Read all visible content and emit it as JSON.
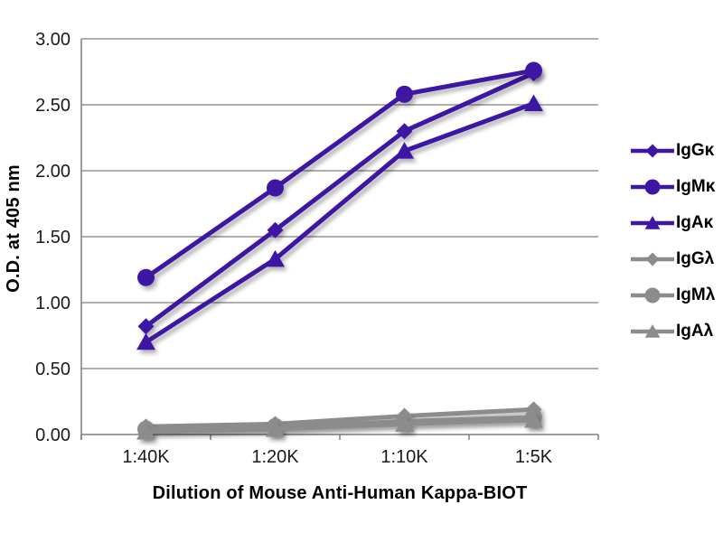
{
  "page": {
    "background": "#ffffff"
  },
  "chart_data": {
    "type": "line",
    "title": "",
    "xlabel": "Dilution of Mouse Anti-Human Kappa-BIOT",
    "ylabel": "O.D. at 405 nm",
    "categories": [
      "1:40K",
      "1:20K",
      "1:10K",
      "1:5K"
    ],
    "ylim": [
      0,
      3
    ],
    "ytick_values": [
      0,
      0.5,
      1,
      1.5,
      2,
      2.5,
      3
    ],
    "ytick_labels": [
      "0.00",
      "0.50",
      "1.00",
      "1.50",
      "2.00",
      "2.50",
      "3.00"
    ],
    "grid": true,
    "legend_position": "right",
    "colors": {
      "kappa": "#3E16A3",
      "lambda": "#8C8C8C",
      "gridline": "#7F7F7F",
      "axis": "#7F7F7F",
      "text": "#000000",
      "tick_text": "#1a1a1a"
    },
    "series": [
      {
        "name": "IgGκ",
        "marker": "diamond",
        "color_key": "kappa",
        "values": [
          0.82,
          1.55,
          2.3,
          2.74
        ]
      },
      {
        "name": "IgMκ",
        "marker": "circle",
        "color_key": "kappa",
        "values": [
          1.19,
          1.87,
          2.58,
          2.76
        ]
      },
      {
        "name": "IgAκ",
        "marker": "triangle",
        "color_key": "kappa",
        "values": [
          0.7,
          1.33,
          2.15,
          2.51
        ]
      },
      {
        "name": "IgGλ",
        "marker": "diamond",
        "color_key": "lambda",
        "values": [
          0.06,
          0.08,
          0.14,
          0.19
        ]
      },
      {
        "name": "IgMλ",
        "marker": "circle",
        "color_key": "lambda",
        "values": [
          0.04,
          0.06,
          0.1,
          0.13
        ]
      },
      {
        "name": "IgAλ",
        "marker": "triangle",
        "color_key": "lambda",
        "values": [
          0.02,
          0.04,
          0.08,
          0.11
        ]
      }
    ]
  }
}
